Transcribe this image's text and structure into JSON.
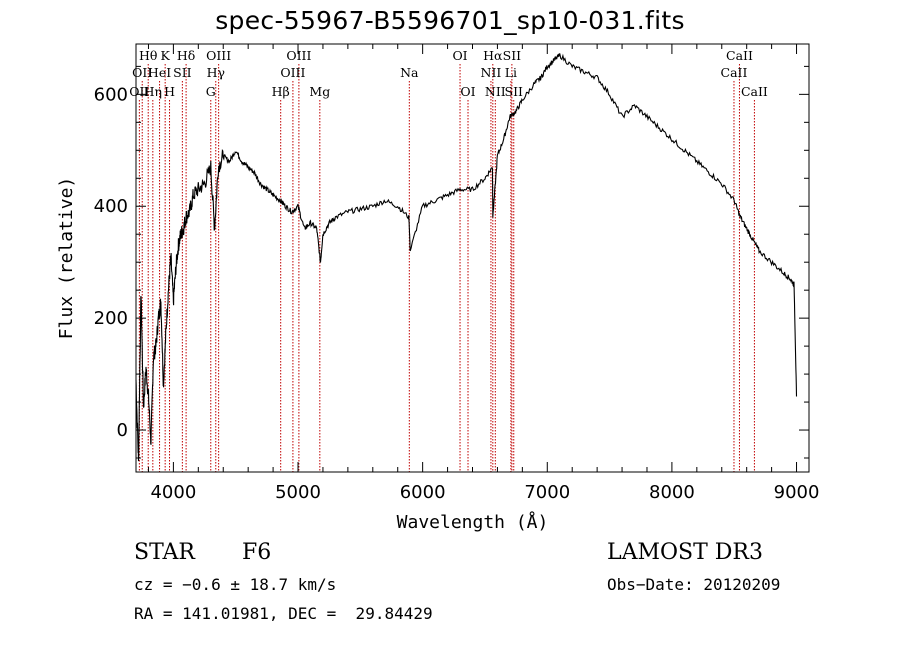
{
  "title": "spec-55967-B5596701_sp10-031.fits",
  "colors": {
    "line": "#000000",
    "marker": "#c00000",
    "frame": "#000000"
  },
  "chart_data": {
    "type": "line",
    "xlabel": "Wavelength (Å)",
    "ylabel": "Flux (relative)",
    "xlim": [
      3700,
      9100
    ],
    "ylim": [
      -75,
      690
    ],
    "xticks": [
      4000,
      5000,
      6000,
      7000,
      8000,
      9000
    ],
    "yticks": [
      0,
      200,
      400,
      600
    ],
    "spectrum_x": [
      3700,
      3720,
      3740,
      3760,
      3780,
      3800,
      3820,
      3840,
      3860,
      3880,
      3900,
      3920,
      3940,
      3960,
      3980,
      4000,
      4020,
      4040,
      4060,
      4080,
      4100,
      4130,
      4160,
      4200,
      4250,
      4300,
      4330,
      4360,
      4400,
      4450,
      4500,
      4550,
      4600,
      4650,
      4700,
      4750,
      4800,
      4860,
      4900,
      4950,
      5000,
      5050,
      5100,
      5150,
      5180,
      5200,
      5250,
      5300,
      5400,
      5500,
      5600,
      5700,
      5800,
      5890,
      5900,
      6000,
      6100,
      6200,
      6300,
      6400,
      6500,
      6560,
      6563,
      6600,
      6650,
      6700,
      6750,
      6800,
      6900,
      6950,
      7000,
      7050,
      7100,
      7200,
      7300,
      7400,
      7500,
      7600,
      7700,
      7800,
      7900,
      8000,
      8100,
      8200,
      8300,
      8400,
      8500,
      8550,
      8600,
      8650,
      8700,
      8800,
      8900,
      8950,
      8980,
      9000
    ],
    "spectrum_y": [
      90,
      -60,
      250,
      40,
      110,
      60,
      -20,
      130,
      150,
      200,
      230,
      80,
      175,
      250,
      310,
      230,
      290,
      330,
      350,
      360,
      380,
      390,
      420,
      430,
      440,
      470,
      360,
      470,
      490,
      480,
      500,
      480,
      470,
      460,
      440,
      430,
      420,
      410,
      400,
      390,
      400,
      360,
      370,
      360,
      300,
      350,
      370,
      380,
      390,
      395,
      400,
      410,
      400,
      380,
      320,
      400,
      410,
      420,
      430,
      430,
      450,
      470,
      380,
      490,
      520,
      560,
      570,
      590,
      620,
      630,
      650,
      660,
      670,
      650,
      640,
      630,
      600,
      560,
      580,
      560,
      540,
      520,
      500,
      480,
      460,
      440,
      410,
      380,
      360,
      340,
      320,
      300,
      280,
      270,
      260,
      60
    ],
    "line_markers": [
      {
        "x": 3727,
        "label": "OII",
        "row": 3
      },
      {
        "x": 3750,
        "label": "OII",
        "row": 2
      },
      {
        "x": 3798,
        "label": "Hθ",
        "row": 1
      },
      {
        "x": 3835,
        "label": "Hη",
        "row": 3
      },
      {
        "x": 3889,
        "label": "HeI",
        "row": 2
      },
      {
        "x": 3934,
        "label": "K",
        "row": 1
      },
      {
        "x": 3969,
        "label": "H",
        "row": 3
      },
      {
        "x": 4072,
        "label": "SII",
        "row": 2
      },
      {
        "x": 4102,
        "label": "Hδ",
        "row": 1
      },
      {
        "x": 4300,
        "label": "G",
        "row": 3
      },
      {
        "x": 4340,
        "label": "Hγ",
        "row": 2
      },
      {
        "x": 4363,
        "label": "OIII",
        "row": 1
      },
      {
        "x": 4861,
        "label": "Hβ",
        "row": 3
      },
      {
        "x": 4959,
        "label": "OIII",
        "row": 2
      },
      {
        "x": 5007,
        "label": "OIII",
        "row": 1
      },
      {
        "x": 5175,
        "label": "Mg",
        "row": 3
      },
      {
        "x": 5893,
        "label": "Na",
        "row": 2
      },
      {
        "x": 6300,
        "label": "OI",
        "row": 1
      },
      {
        "x": 6364,
        "label": "OI",
        "row": 3
      },
      {
        "x": 6548,
        "label": "NII",
        "row": 2
      },
      {
        "x": 6563,
        "label": "Hα",
        "row": 1
      },
      {
        "x": 6583,
        "label": "NII",
        "row": 3
      },
      {
        "x": 6708,
        "label": "Li",
        "row": 2
      },
      {
        "x": 6716,
        "label": "SII",
        "row": 1
      },
      {
        "x": 6731,
        "label": "SII",
        "row": 3
      },
      {
        "x": 8498,
        "label": "CaII",
        "row": 2
      },
      {
        "x": 8542,
        "label": "CaII",
        "row": 1
      },
      {
        "x": 8662,
        "label": "CaII",
        "row": 3
      }
    ]
  },
  "info": {
    "class_label": "STAR",
    "subclass": "F6",
    "survey": "LAMOST DR3",
    "cz": "cz = −0.6 ± 18.7 km/s",
    "obs_date": "Obs−Date: 20120209",
    "coords": "RA = 141.01981, DEC =  29.84429"
  }
}
